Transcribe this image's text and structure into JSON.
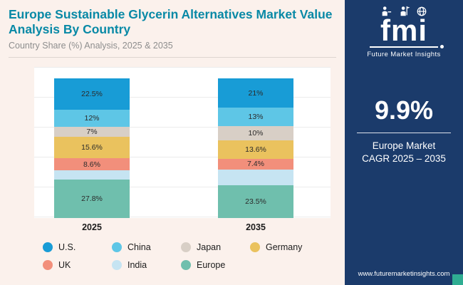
{
  "header": {
    "title": "Europe Sustainable Glycerin Alternatives Market Value Analysis By Country",
    "subtitle": "Country Share (%) Analysis, 2025 & 2035"
  },
  "sidebar": {
    "brand": "fmi",
    "brand_sub": "Future Market Insights",
    "stat_value": "9.9%",
    "stat_label_line1": "Europe Market",
    "stat_label_line2": "CAGR 2025 – 2035",
    "website": "www.futuremarketinsights.com",
    "colors": {
      "background": "#1B3B6B",
      "accent_square": "#2FAD92"
    }
  },
  "chart_data": {
    "type": "bar",
    "subtype": "stacked-column",
    "title": "Europe Sustainable Glycerin Alternatives Market Value Analysis By Country",
    "subtitle": "Country Share (%) Analysis, 2025 & 2035",
    "categories": [
      "2025",
      "2035"
    ],
    "stack_order_top_to_bottom": [
      "U.S.",
      "China",
      "Japan",
      "Germany",
      "UK",
      "India",
      "Europe"
    ],
    "series": [
      {
        "name": "U.S.",
        "color": "#189CD6",
        "values": [
          22.5,
          21.0
        ],
        "labels": [
          "22.5%",
          "21%"
        ]
      },
      {
        "name": "China",
        "color": "#5EC6E6",
        "values": [
          12.0,
          13.0
        ],
        "labels": [
          "12%",
          "13%"
        ]
      },
      {
        "name": "Japan",
        "color": "#D8CFC6",
        "values": [
          7.0,
          10.0
        ],
        "labels": [
          "7%",
          "10%"
        ]
      },
      {
        "name": "Germany",
        "color": "#EAC25E",
        "values": [
          15.6,
          13.6
        ],
        "labels": [
          "15.6%",
          "13.6%"
        ]
      },
      {
        "name": "UK",
        "color": "#F28F7B",
        "values": [
          8.6,
          7.4
        ],
        "labels": [
          "8.6%",
          "7.4%"
        ]
      },
      {
        "name": "India",
        "color": "#C6E4F2",
        "values": [
          6.5,
          11.5
        ],
        "labels": [
          "",
          ""
        ]
      },
      {
        "name": "Europe",
        "color": "#6FBFAD",
        "values": [
          27.8,
          23.5
        ],
        "labels": [
          "27.8%",
          "23.5%"
        ]
      }
    ],
    "ylim": [
      0,
      100
    ],
    "grid": true,
    "legend_position": "bottom"
  }
}
